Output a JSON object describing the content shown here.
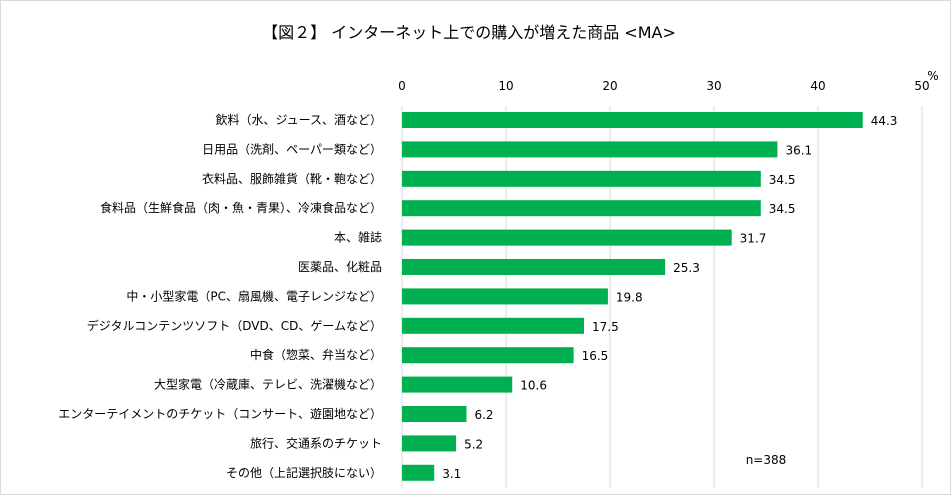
{
  "chart_data": {
    "type": "bar",
    "orientation": "horizontal",
    "title": "【図２】 インターネット上での購入が増えた商品 <MA>",
    "unit_label": "%",
    "note": "n=388",
    "xlim": [
      0,
      50
    ],
    "xticks": [
      "0",
      "10",
      "20",
      "30",
      "40",
      "50"
    ],
    "tick_values": [
      0,
      10,
      20,
      30,
      40,
      50
    ],
    "categories": [
      "飲料（水、ジュース、酒など）",
      "日用品（洗剤、ペーパー類など）",
      "衣料品、服飾雑貨（靴・鞄など）",
      "食料品（生鮮食品（肉・魚・青果）、冷凍食品など）",
      "本、雑誌",
      "医薬品、化粧品",
      "中・小型家電（PC、扇風機、電子レンジなど）",
      "デジタルコンテンツソフト（DVD、CD、ゲームなど）",
      "中食（惣菜、弁当など）",
      "大型家電（冷蔵庫、テレビ、洗濯機など）",
      "エンターテイメントのチケット（コンサート、遊園地など）",
      "旅行、交通系のチケット",
      "その他（上記選択肢にない）"
    ],
    "values": [
      44.3,
      36.1,
      34.5,
      34.5,
      31.7,
      25.3,
      19.8,
      17.5,
      16.5,
      10.6,
      6.2,
      5.2,
      3.1
    ],
    "value_labels": [
      "44.3",
      "36.1",
      "34.5",
      "34.5",
      "31.7",
      "25.3",
      "19.8",
      "17.5",
      "16.5",
      "10.6",
      "6.2",
      "5.2",
      "3.1"
    ],
    "colors": {
      "bar": "#00b050",
      "gridline": "#d9d9d9",
      "text": "#000000"
    }
  }
}
